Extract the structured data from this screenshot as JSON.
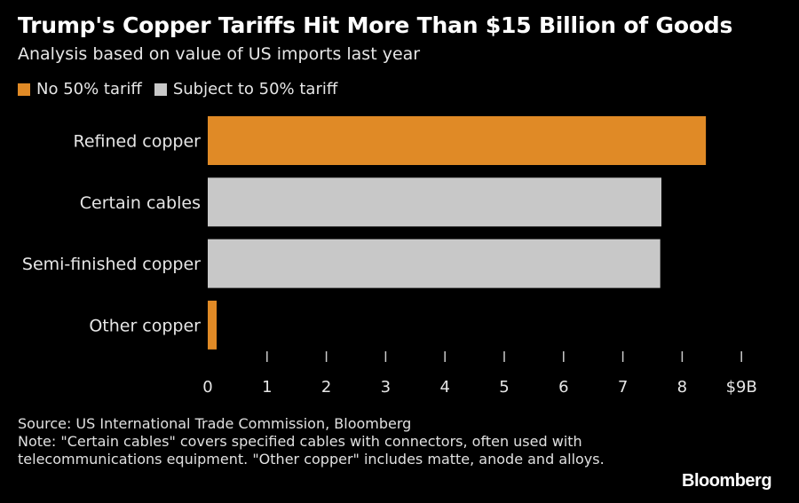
{
  "chart_data": {
    "type": "bar",
    "orientation": "horizontal",
    "title": "Trump's Copper Tariffs Hit More Than $15 Billion of Goods",
    "subtitle": "Analysis based on value of US imports last year",
    "categories": [
      "Refined copper",
      "Certain cables",
      "Semi-finished copper",
      "Other copper"
    ],
    "values": [
      8.4,
      7.65,
      7.63,
      0.15
    ],
    "series_assignment": [
      "No 50% tariff",
      "Subject to 50% tariff",
      "Subject to 50% tariff",
      "No 50% tariff"
    ],
    "legend": [
      {
        "name": "No 50% tariff",
        "color": "#e08a26"
      },
      {
        "name": "Subject to 50% tariff",
        "color": "#c8c8c8"
      }
    ],
    "xlim": [
      0,
      9
    ],
    "xticks": [
      0,
      1,
      2,
      3,
      4,
      5,
      6,
      7,
      8,
      9
    ],
    "xtick_labels": [
      "0",
      "1",
      "2",
      "3",
      "4",
      "5",
      "6",
      "7",
      "8",
      "$9B"
    ],
    "grid": false,
    "legend_placement": "top-left"
  },
  "footer": {
    "source": "Source: US International Trade Commission, Bloomberg",
    "note": "Note: \"Certain cables\" covers specified cables with connectors, often used with telecommunications equipment. \"Other copper\" includes matte, anode and alloys."
  },
  "brand": "Bloomberg",
  "colors": {
    "background": "#000000",
    "orange": "#e08a26",
    "gray": "#c8c8c8",
    "text": "#ffffff",
    "muted_text": "#e6e6e6"
  }
}
